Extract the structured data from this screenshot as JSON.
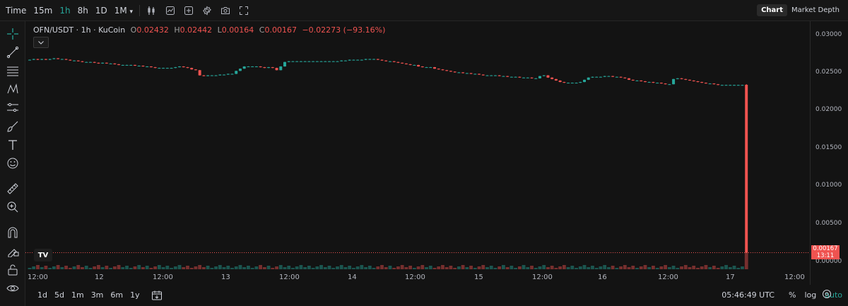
{
  "toolbar": {
    "time_label": "Time",
    "intervals": [
      "15m",
      "1h",
      "8h",
      "1D",
      "1M"
    ],
    "active_interval": "1h",
    "view_chart": "Chart",
    "view_depth": "Market Depth"
  },
  "legend": {
    "symbol": "OFN/USDT · 1h · KuCoin",
    "open_label": "O",
    "open_value": "0.02432",
    "high_label": "H",
    "high_value": "0.02442",
    "low_label": "L",
    "low_value": "0.00164",
    "close_label": "C",
    "close_value": "0.00167",
    "change": "−0.02273 (−93.16%)"
  },
  "price_axis": {
    "labels": [
      "0.03000",
      "0.02500",
      "0.02000",
      "0.01500",
      "0.01000",
      "0.00500",
      "0.00000"
    ],
    "last_price": "0.00167",
    "countdown": "13:11"
  },
  "time_axis": {
    "labels": [
      "12:00",
      "12",
      "12:00",
      "13",
      "12:00",
      "14",
      "12:00",
      "15",
      "12:00",
      "16",
      "12:00",
      "17",
      "12:00"
    ]
  },
  "bottom": {
    "ranges": [
      "1d",
      "5d",
      "1m",
      "3m",
      "6m",
      "1y"
    ],
    "clock": "05:46:49 UTC",
    "percent": "%",
    "log": "log",
    "auto": "auto"
  },
  "colors": {
    "up": "#26a69a",
    "down": "#ef5350",
    "background": "#131313"
  },
  "icons": {
    "left_toolbar": [
      "crosshair-icon",
      "trend-line-icon",
      "fib-lines-icon",
      "pattern-icon",
      "projection-icon",
      "brush-icon",
      "text-icon",
      "emoji-icon",
      "ruler-icon",
      "zoom-in-icon",
      "magnet-icon",
      "lock-drawing-icon",
      "unlock-icon",
      "eye-icon"
    ]
  },
  "chart_data": {
    "type": "candlestick",
    "symbol": "OFN/USDT",
    "interval": "1h",
    "ylim": [
      0,
      0.031
    ],
    "series_close": [
      0.0277,
      0.0278,
      0.0277,
      0.0278,
      0.0277,
      0.0278,
      0.0279,
      0.0278,
      0.0278,
      0.0277,
      0.0276,
      0.0276,
      0.0275,
      0.0274,
      0.0274,
      0.0274,
      0.0273,
      0.0272,
      0.0273,
      0.0272,
      0.0272,
      0.0271,
      0.027,
      0.027,
      0.027,
      0.027,
      0.0269,
      0.0269,
      0.0268,
      0.0268,
      0.0267,
      0.0266,
      0.0266,
      0.0266,
      0.0266,
      0.0266,
      0.0267,
      0.0268,
      0.0267,
      0.0266,
      0.0264,
      0.0263,
      0.0256,
      0.0255,
      0.0256,
      0.0256,
      0.0256,
      0.0257,
      0.0257,
      0.0258,
      0.0258,
      0.0262,
      0.0265,
      0.0268,
      0.0268,
      0.0268,
      0.0268,
      0.0267,
      0.0266,
      0.0267,
      0.0266,
      0.0263,
      0.0268,
      0.0274,
      0.0275,
      0.0275,
      0.0275,
      0.0275,
      0.0275,
      0.0275,
      0.0275,
      0.0275,
      0.0275,
      0.0275,
      0.0275,
      0.0275,
      0.0275,
      0.0276,
      0.0276,
      0.0277,
      0.0277,
      0.0277,
      0.0277,
      0.0278,
      0.0278,
      0.0278,
      0.0277,
      0.0276,
      0.0275,
      0.0275,
      0.0274,
      0.0273,
      0.0272,
      0.0271,
      0.027,
      0.027,
      0.0268,
      0.0267,
      0.0267,
      0.0267,
      0.0265,
      0.0264,
      0.0263,
      0.0262,
      0.0261,
      0.026,
      0.026,
      0.0259,
      0.0259,
      0.0258,
      0.0258,
      0.0257,
      0.0256,
      0.0256,
      0.0256,
      0.0256,
      0.0255,
      0.0255,
      0.0254,
      0.0254,
      0.0254,
      0.0253,
      0.0253,
      0.0253,
      0.0252,
      0.0252,
      0.0255,
      0.0256,
      0.0253,
      0.0251,
      0.0249,
      0.0247,
      0.0246,
      0.0246,
      0.0246,
      0.0246,
      0.0247,
      0.025,
      0.0253,
      0.0254,
      0.0254,
      0.0254,
      0.0255,
      0.0255,
      0.0254,
      0.0254,
      0.0253,
      0.0252,
      0.025,
      0.0249,
      0.0249,
      0.0248,
      0.0247,
      0.0247,
      0.0246,
      0.0246,
      0.0245,
      0.0244,
      0.0244,
      0.0251,
      0.0252,
      0.0251,
      0.025,
      0.0249,
      0.0248,
      0.0247,
      0.0246,
      0.0245,
      0.0245,
      0.0244,
      0.0243,
      0.0243,
      0.0243,
      0.0243,
      0.0243,
      0.0243,
      0.0243,
      0.00167
    ],
    "last_candle": {
      "open": 0.02432,
      "high": 0.02442,
      "low": 0.00164,
      "close": 0.00167
    }
  }
}
